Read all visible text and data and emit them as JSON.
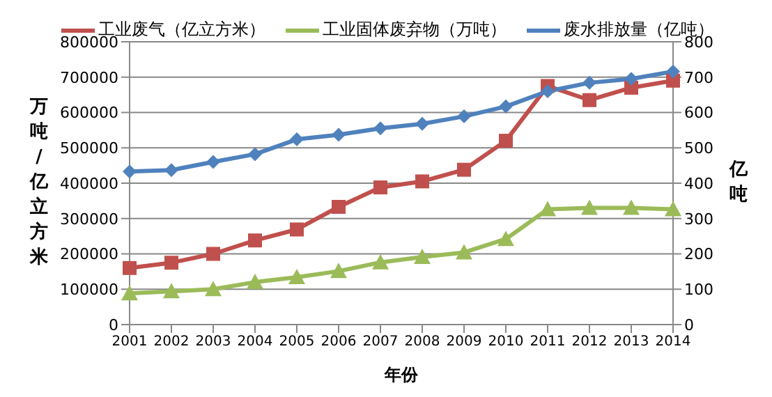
{
  "chart_data": {
    "type": "line",
    "categories": [
      "2001",
      "2002",
      "2003",
      "2004",
      "2005",
      "2006",
      "2007",
      "2008",
      "2009",
      "2010",
      "2011",
      "2012",
      "2013",
      "2014"
    ],
    "series": [
      {
        "name": "工业废气（亿立方米）",
        "color": "#c0504d",
        "marker": "square",
        "values": [
          160000,
          175000,
          200000,
          238000,
          269000,
          333000,
          388000,
          405000,
          438000,
          520000,
          675000,
          635000,
          670000,
          690000
        ]
      },
      {
        "name": "工业固体废弃物（万吨）",
        "color": "#9bbb59",
        "marker": "triangle",
        "values": [
          88000,
          94000,
          100000,
          120000,
          134000,
          151000,
          176000,
          191000,
          204000,
          242000,
          326000,
          330000,
          330000,
          326000
        ]
      },
      {
        "name": "废水排放量（亿吨）",
        "color": "#4f81bd",
        "marker": "diamond",
        "axis": "y2",
        "values": [
          433,
          437,
          460,
          482,
          524,
          537,
          555,
          568,
          589,
          617,
          660,
          684,
          695,
          716
        ]
      }
    ],
    "ylim": [
      0,
      800000
    ],
    "yticks": [
      0,
      100000,
      200000,
      300000,
      400000,
      500000,
      600000,
      700000,
      800000
    ],
    "y2lim": [
      0,
      800
    ],
    "y2ticks": [
      0,
      100,
      200,
      300,
      400,
      500,
      600,
      700,
      800
    ],
    "xlabel": "年份",
    "ylabel": "万吨/亿立方米",
    "y2label": "亿吨",
    "grid": "y",
    "legend": "top"
  }
}
